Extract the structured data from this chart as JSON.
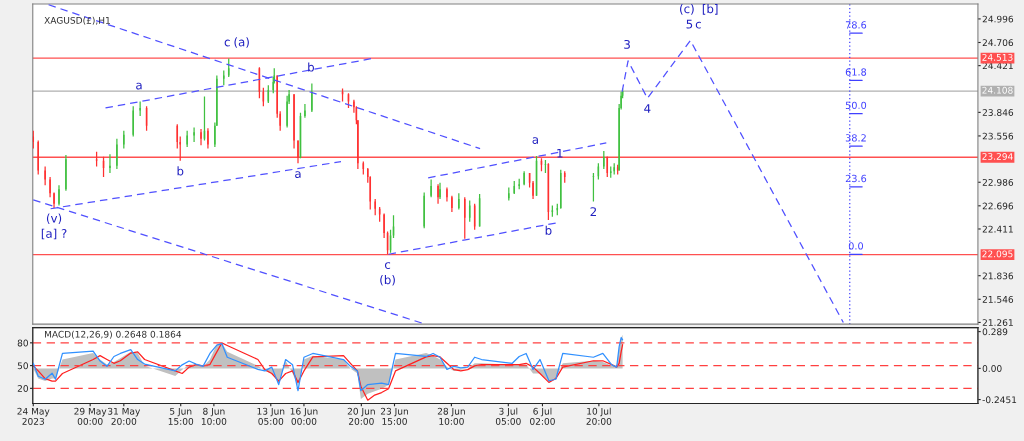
{
  "chart_data": [
    {
      "type": "candlestick",
      "title": "XAGUSD(£),H1",
      "x": [
        "2023-05-24T05:00",
        "2023-05-24T15:00",
        "2023-05-25T05:00",
        "2023-05-25T15:00",
        "2023-05-25T23:00",
        "2023-05-26T09:00",
        "2023-05-26T23:00",
        "2023-05-29T13:00",
        "2023-05-30T03:00",
        "2023-05-30T16:00",
        "2023-05-31T06:00",
        "2023-05-31T20:00",
        "2023-06-01T15:00",
        "2023-06-02T05:00",
        "2023-06-02T18:00",
        "2023-06-05T08:00",
        "2023-06-05T14:00",
        "2023-06-06T04:00",
        "2023-06-06T18:00",
        "2023-06-07T08:00",
        "2023-06-07T15:00",
        "2023-06-07T22:00",
        "2023-06-08T12:00",
        "2023-06-08T16:00",
        "2023-06-09T06:00",
        "2023-06-09T16:00",
        "2023-06-12T06:00",
        "2023-06-12T14:00",
        "2023-06-13T00:00",
        "2023-06-13T10:00",
        "2023-06-13T12:00",
        "2023-06-13T18:00",
        "2023-06-14T00:00",
        "2023-06-14T14:00",
        "2023-06-14T18:00",
        "2023-06-15T04:00",
        "2023-06-15T12:00",
        "2023-06-15T17:00",
        "2023-06-16T02:00",
        "2023-06-16T16:00",
        "2023-06-19T06:00",
        "2023-06-19T18:00",
        "2023-06-20T05:00",
        "2023-06-20T10:00",
        "2023-06-20T13:00",
        "2023-06-21T00:00",
        "2023-06-21T09:00",
        "2023-06-21T14:00",
        "2023-06-22T00:00",
        "2023-06-22T09:00",
        "2023-06-22T18:00",
        "2023-06-23T01:00",
        "2023-06-23T07:00",
        "2023-06-23T13:00",
        "2023-06-26T03:00",
        "2023-06-26T17:00",
        "2023-06-27T07:00",
        "2023-06-27T11:00",
        "2023-06-28T01:00",
        "2023-06-28T11:00",
        "2023-06-29T01:00",
        "2023-06-29T13:00",
        "2023-06-29T23:00",
        "2023-06-30T09:00",
        "2023-06-30T19:00",
        "2023-07-03T06:00",
        "2023-07-03T17:00",
        "2023-07-04T03:00",
        "2023-07-04T13:00",
        "2023-07-05T00:00",
        "2023-07-05T07:00",
        "2023-07-05T14:00",
        "2023-07-06T00:00",
        "2023-07-06T08:00",
        "2023-07-06T14:00",
        "2023-07-06T22:00",
        "2023-07-07T08:00",
        "2023-07-07T15:00",
        "2023-07-07T23:00",
        "2023-07-10T09:00",
        "2023-07-10T19:00",
        "2023-07-11T06:00",
        "2023-07-11T13:00",
        "2023-07-11T20:00",
        "2023-07-12T03:00",
        "2023-07-12T10:00",
        "2023-07-12T13:00",
        "2023-07-12T17:00",
        "2023-07-12T20:00"
      ],
      "ohlc": [
        [
          23.55,
          23.62,
          23.4,
          23.48
        ],
        [
          23.48,
          23.5,
          23.08,
          23.13
        ],
        [
          23.13,
          23.18,
          22.95,
          23.02
        ],
        [
          23.02,
          23.05,
          22.8,
          22.85
        ],
        [
          22.85,
          22.86,
          22.67,
          22.72
        ],
        [
          22.72,
          22.95,
          22.7,
          22.9
        ],
        [
          22.9,
          23.32,
          22.88,
          23.27
        ],
        [
          23.27,
          23.36,
          23.18,
          23.25
        ],
        [
          23.25,
          23.3,
          23.05,
          23.16
        ],
        [
          23.16,
          23.33,
          23.1,
          23.19
        ],
        [
          23.19,
          23.52,
          23.15,
          23.45
        ],
        [
          23.45,
          23.62,
          23.4,
          23.57
        ],
        [
          23.57,
          23.92,
          23.55,
          23.87
        ],
        [
          23.87,
          23.98,
          23.8,
          23.9
        ],
        [
          23.9,
          23.92,
          23.62,
          23.68
        ],
        [
          23.68,
          23.7,
          23.4,
          23.48
        ],
        [
          23.48,
          23.55,
          23.25,
          23.45
        ],
        [
          23.45,
          23.62,
          23.42,
          23.56
        ],
        [
          23.56,
          23.66,
          23.48,
          23.6
        ],
        [
          23.6,
          23.64,
          23.44,
          23.52
        ],
        [
          23.52,
          24.04,
          23.5,
          23.62
        ],
        [
          23.62,
          23.65,
          23.4,
          23.45
        ],
        [
          23.45,
          23.72,
          23.42,
          23.68
        ],
        [
          23.68,
          24.3,
          23.68,
          24.26
        ],
        [
          24.26,
          24.36,
          24.18,
          24.3
        ],
        [
          24.3,
          24.51,
          24.28,
          24.39
        ],
        [
          24.39,
          24.4,
          24.02,
          24.1
        ],
        [
          24.1,
          24.15,
          23.92,
          23.98
        ],
        [
          23.98,
          24.18,
          23.96,
          24.12
        ],
        [
          24.12,
          24.28,
          24.08,
          24.22
        ],
        [
          24.22,
          24.39,
          24.2,
          24.3
        ],
        [
          24.3,
          24.3,
          23.78,
          23.83
        ],
        [
          23.83,
          23.86,
          23.62,
          23.68
        ],
        [
          23.68,
          24.05,
          23.66,
          23.98
        ],
        [
          23.98,
          24.12,
          23.95,
          24.07
        ],
        [
          24.07,
          24.07,
          23.4,
          23.5
        ],
        [
          23.5,
          23.5,
          23.22,
          23.29
        ],
        [
          23.29,
          23.84,
          23.28,
          23.8
        ],
        [
          23.8,
          23.95,
          23.78,
          23.87
        ],
        [
          23.87,
          24.2,
          23.85,
          24.1
        ],
        [
          24.1,
          24.14,
          23.98,
          24.07
        ],
        [
          24.07,
          24.08,
          23.9,
          23.98
        ],
        [
          23.98,
          24.0,
          23.84,
          23.91
        ],
        [
          23.91,
          23.92,
          23.7,
          23.75
        ],
        [
          23.75,
          23.75,
          23.15,
          23.22
        ],
        [
          23.22,
          23.24,
          23.08,
          23.15
        ],
        [
          23.15,
          23.16,
          22.98,
          23.05
        ],
        [
          23.05,
          23.06,
          22.65,
          22.75
        ],
        [
          22.75,
          22.78,
          22.58,
          22.66
        ],
        [
          22.66,
          22.68,
          22.5,
          22.59
        ],
        [
          22.59,
          22.6,
          22.3,
          22.36
        ],
        [
          22.36,
          22.38,
          22.1,
          22.15
        ],
        [
          22.15,
          22.4,
          22.12,
          22.33
        ],
        [
          22.33,
          22.58,
          22.3,
          22.44
        ],
        [
          22.44,
          22.86,
          22.42,
          22.82
        ],
        [
          22.82,
          23.02,
          22.8,
          22.94
        ],
        [
          22.94,
          22.96,
          22.72,
          22.8
        ],
        [
          22.8,
          22.98,
          22.78,
          22.9
        ],
        [
          22.9,
          22.92,
          22.75,
          22.8
        ],
        [
          22.8,
          22.82,
          22.62,
          22.67
        ],
        [
          22.67,
          22.85,
          22.65,
          22.78
        ],
        [
          22.78,
          22.8,
          22.29,
          22.55
        ],
        [
          22.55,
          22.76,
          22.5,
          22.7
        ],
        [
          22.7,
          22.72,
          22.4,
          22.44
        ],
        [
          22.44,
          22.84,
          22.44,
          22.79
        ],
        [
          22.79,
          22.92,
          22.76,
          22.85
        ],
        [
          22.85,
          23.0,
          22.84,
          22.94
        ],
        [
          22.94,
          23.03,
          22.9,
          22.96
        ],
        [
          22.96,
          23.12,
          22.95,
          23.1
        ],
        [
          23.1,
          23.1,
          22.92,
          22.98
        ],
        [
          22.98,
          23.0,
          22.78,
          22.82
        ],
        [
          22.82,
          23.31,
          22.82,
          23.25
        ],
        [
          23.25,
          23.28,
          23.12,
          23.2
        ],
        [
          23.2,
          23.26,
          23.1,
          23.21
        ],
        [
          23.21,
          23.22,
          22.52,
          22.62
        ],
        [
          22.62,
          22.7,
          22.56,
          22.64
        ],
        [
          22.64,
          22.72,
          22.58,
          22.67
        ],
        [
          22.67,
          23.14,
          22.66,
          23.1
        ],
        [
          23.1,
          23.12,
          22.98,
          23.05
        ],
        [
          23.05,
          23.1,
          22.75,
          23.06
        ],
        [
          23.06,
          23.22,
          23.02,
          23.18
        ],
        [
          23.18,
          23.37,
          23.15,
          23.3
        ],
        [
          23.3,
          23.3,
          23.05,
          23.1
        ],
        [
          23.1,
          23.18,
          23.04,
          23.12
        ],
        [
          23.12,
          23.22,
          23.08,
          23.17
        ],
        [
          23.17,
          23.2,
          23.08,
          23.13
        ],
        [
          23.13,
          23.95,
          23.13,
          23.9
        ],
        [
          23.9,
          24.1,
          23.88,
          24.05
        ],
        [
          24.05,
          24.14,
          24.02,
          24.108
        ]
      ],
      "colors": [
        "#ff3030",
        "#ff3030",
        "#ff3030",
        "#ff3030",
        "#ff3030",
        "#40c040",
        "#40c040",
        "#ff3030",
        "#ff3030",
        "#40c040",
        "#40c040",
        "#40c040",
        "#40c040",
        "#40c040",
        "#ff3030",
        "#ff3030",
        "#ff3030",
        "#40c040",
        "#40c040",
        "#ff3030",
        "#40c040",
        "#ff3030",
        "#40c040",
        "#40c040",
        "#40c040",
        "#40c040",
        "#ff3030",
        "#ff3030",
        "#40c040",
        "#40c040",
        "#40c040",
        "#ff3030",
        "#ff3030",
        "#40c040",
        "#40c040",
        "#ff3030",
        "#ff3030",
        "#40c040",
        "#40c040",
        "#40c040",
        "#ff3030",
        "#ff3030",
        "#ff3030",
        "#ff3030",
        "#ff3030",
        "#ff3030",
        "#ff3030",
        "#ff3030",
        "#ff3030",
        "#ff3030",
        "#ff3030",
        "#ff3030",
        "#40c040",
        "#40c040",
        "#40c040",
        "#40c040",
        "#ff3030",
        "#40c040",
        "#ff3030",
        "#ff3030",
        "#40c040",
        "#ff3030",
        "#40c040",
        "#ff3030",
        "#40c040",
        "#40c040",
        "#40c040",
        "#40c040",
        "#40c040",
        "#ff3030",
        "#ff3030",
        "#40c040",
        "#ff3030",
        "#40c040",
        "#ff3030",
        "#40c040",
        "#40c040",
        "#40c040",
        "#ff3030",
        "#40c040",
        "#40c040",
        "#40c040",
        "#ff3030",
        "#40c040",
        "#40c040",
        "#ff3030",
        "#40c040",
        "#40c040",
        "#40c040"
      ],
      "series": [
        {
          "type": "line",
          "line_style": "dashed",
          "color": "#5050ff",
          "x": [
            "2023-05-25T12:00",
            "2023-06-30T20:00"
          ],
          "values": [
            25.17,
            23.4
          ]
        },
        {
          "type": "line",
          "line_style": "dashed",
          "color": "#5050ff",
          "x": [
            "2023-05-24T05:00",
            "2023-06-26T00:00"
          ],
          "values": [
            22.77,
            21.25
          ]
        },
        {
          "type": "line",
          "line_style": "dashed",
          "color": "#5050ff",
          "x": [
            "2023-05-30T07:00",
            "2023-06-21T19:00"
          ],
          "values": [
            23.9,
            24.51
          ]
        },
        {
          "type": "line",
          "line_style": "dashed",
          "color": "#5050ff",
          "x": [
            "2023-05-25T16:00",
            "2023-06-19T03:00"
          ],
          "values": [
            22.66,
            23.24
          ]
        },
        {
          "type": "line",
          "line_style": "dashed",
          "color": "#5050ff",
          "x": [
            "2023-06-26T11:00",
            "2023-07-11T11:00"
          ],
          "values": [
            23.04,
            23.47
          ]
        },
        {
          "type": "line",
          "line_style": "dashed",
          "color": "#5050ff",
          "x": [
            "2023-06-23T03:00",
            "2023-07-07T10:00"
          ],
          "values": [
            22.1,
            22.49
          ]
        },
        {
          "type": "line",
          "line_style": "dashed",
          "color": "#5050ff",
          "x": [
            "2023-07-12T19:00",
            "2023-07-13T07:00",
            "2023-07-14T22:00",
            "2023-07-18T13:00",
            "2023-07-31T10:00"
          ],
          "values": [
            24.1,
            24.48,
            24.02,
            24.73,
            21.26
          ]
        },
        {
          "type": "line",
          "name": "78.6",
          "color": "#4040ff",
          "x": [
            "2023-07-31T23:00",
            "2023-08-02T00:00"
          ],
          "values": [
            24.82,
            24.82
          ]
        },
        {
          "type": "line",
          "name": "61.8",
          "color": "#4040ff",
          "x": [
            "2023-07-31T23:00",
            "2023-08-02T00:00"
          ],
          "values": [
            24.24,
            24.24
          ]
        },
        {
          "type": "line",
          "name": "50.0",
          "color": "#4040ff",
          "x": [
            "2023-07-31T23:00",
            "2023-08-02T00:00"
          ],
          "values": [
            23.83,
            23.83
          ]
        },
        {
          "type": "line",
          "name": "38.2",
          "color": "#4040ff",
          "x": [
            "2023-07-31T23:00",
            "2023-08-02T00:00"
          ],
          "values": [
            23.43,
            23.43
          ]
        },
        {
          "type": "line",
          "name": "23.6",
          "color": "#4040ff",
          "x": [
            "2023-07-31T23:00",
            "2023-08-02T00:00"
          ],
          "values": [
            22.93,
            22.93
          ]
        },
        {
          "type": "line",
          "name": "0.0",
          "color": "#4040ff",
          "x": [
            "2023-07-31T23:00",
            "2023-08-02T00:00"
          ],
          "values": [
            22.1,
            22.1
          ]
        }
      ],
      "xlim": [
        "2023-05-24T04:00",
        "2023-08-11T18:00"
      ],
      "ylim": [
        21.24,
        25.18
      ],
      "yticks": [
        24.996,
        24.706,
        24.421,
        23.846,
        23.556,
        22.986,
        22.696,
        22.411,
        21.836,
        21.546,
        21.261
      ],
      "tick_labels": "y",
      "ref_lines": [
        {
          "axis": "y",
          "value": 24.513,
          "label": "24.513",
          "color": "#ff5050"
        },
        {
          "axis": "y",
          "value": 24.108,
          "label": "24.108",
          "color": "#b0b0b0"
        },
        {
          "axis": "y",
          "value": 23.294,
          "label": "23.294",
          "color": "#ff5050"
        },
        {
          "axis": "y",
          "value": 22.095,
          "label": "22.095",
          "color": "#ff5050"
        },
        {
          "axis": "x",
          "value": "2023-07-31T23:00",
          "color": "#4040ff",
          "line_style": "dotted"
        }
      ],
      "annotations": [
        {
          "text": "c",
          "x": "2023-06-09T16:00",
          "y": 24.51
        },
        {
          "text": "(a)",
          "x": "2023-06-09T16:00",
          "y": 24.51
        },
        {
          "text": "a",
          "x": "2023-06-02T05:00",
          "y": 23.98
        },
        {
          "text": "b",
          "x": "2023-06-05T14:00",
          "y": 23.25
        },
        {
          "text": "(v)",
          "x": "2023-05-25T23:00",
          "y": 22.67
        },
        {
          "text": "[a] ?",
          "x": "2023-05-25T23:00",
          "y": 22.67
        },
        {
          "text": "a",
          "x": "2023-06-15T12:00",
          "y": 23.22
        },
        {
          "text": "b",
          "x": "2023-06-16T16:00",
          "y": 24.2
        },
        {
          "text": "c",
          "x": "2023-06-23T01:00",
          "y": 22.1
        },
        {
          "text": "(b)",
          "x": "2023-06-23T01:00",
          "y": 22.1
        },
        {
          "text": "a",
          "x": "2023-07-05T14:00",
          "y": 23.31
        },
        {
          "text": "1",
          "x": "2023-07-07T15:00",
          "y": 23.14
        },
        {
          "text": "b",
          "x": "2023-07-06T14:00",
          "y": 22.52
        },
        {
          "text": "2",
          "x": "2023-07-10T09:00",
          "y": 22.75
        },
        {
          "text": "3",
          "x": "2023-07-13T07:00",
          "y": 24.48
        },
        {
          "text": "4",
          "x": "2023-07-14T22:00",
          "y": 24.02
        },
        {
          "text": "5",
          "x": "2023-07-18T13:00",
          "y": 24.73
        },
        {
          "text": "c",
          "x": "2023-07-18T13:00",
          "y": 24.73
        },
        {
          "text": "(c)",
          "x": "2023-07-18T13:00",
          "y": 24.73
        },
        {
          "text": "[b]",
          "x": "2023-07-18T13:00",
          "y": 24.73
        }
      ]
    },
    {
      "type": "line",
      "title": "MACD(12,26,9) 0.2648 0.1864",
      "x": [
        "2023-05-24T05:00",
        "2023-05-24T15:00",
        "2023-05-25T05:00",
        "2023-05-25T19:00",
        "2023-05-26T02:00",
        "2023-05-26T16:00",
        "2023-05-29T06:00",
        "2023-05-29T20:00",
        "2023-05-30T10:00",
        "2023-05-31T00:00",
        "2023-05-31T13:00",
        "2023-06-01T10:00",
        "2023-06-02T00:00",
        "2023-06-02T14:00",
        "2023-06-05T04:00",
        "2023-06-05T18:00",
        "2023-06-06T08:00",
        "2023-06-06T22:00",
        "2023-06-07T12:00",
        "2023-06-08T02:00",
        "2023-06-08T16:00",
        "2023-06-09T02:00",
        "2023-06-09T13:00",
        "2023-06-12T03:00",
        "2023-06-12T17:00",
        "2023-06-13T07:00",
        "2023-06-13T21:00",
        "2023-06-14T11:00",
        "2023-06-15T01:00",
        "2023-06-15T12:00",
        "2023-06-16T00:00",
        "2023-06-16T18:00",
        "2023-06-19T08:00",
        "2023-06-19T22:00",
        "2023-06-20T12:00",
        "2023-06-20T19:00",
        "2023-06-21T09:00",
        "2023-06-21T23:00",
        "2023-06-22T13:00",
        "2023-06-23T03:00",
        "2023-06-23T17:00",
        "2023-06-26T07:00",
        "2023-06-26T21:00",
        "2023-06-27T11:00",
        "2023-06-28T01:00",
        "2023-06-28T15:00",
        "2023-06-29T05:00",
        "2023-06-29T19:00",
        "2023-06-30T09:00",
        "2023-06-30T23:00",
        "2023-07-03T13:00",
        "2023-07-04T03:00",
        "2023-07-04T17:00",
        "2023-07-05T07:00",
        "2023-07-05T21:00",
        "2023-07-06T15:00",
        "2023-07-07T05:00",
        "2023-07-07T19:00",
        "2023-07-10T09:00",
        "2023-07-11T04:00",
        "2023-07-11T22:00",
        "2023-07-12T08:00",
        "2023-07-12T13:00",
        "2023-07-12T17:00",
        "2023-07-12T20:00"
      ],
      "series": [
        {
          "type": "area",
          "color": "#c0c0c0",
          "values": [
            0.0,
            -0.08,
            -0.1,
            -0.08,
            -0.08,
            0.07,
            0.12,
            0.07,
            0.03,
            0.05,
            0.08,
            0.13,
            0.12,
            0.02,
            -0.06,
            -0.01,
            0.03,
            0.03,
            0.01,
            0.07,
            0.19,
            0.2,
            0.13,
            0.02,
            -0.02,
            -0.04,
            -0.11,
            0.06,
            -0.04,
            -0.14,
            0.07,
            0.1,
            0.07,
            0.0,
            -0.04,
            -0.24,
            -0.2,
            -0.18,
            -0.16,
            -0.13,
            0.07,
            0.12,
            0.1,
            0.07,
            0.01,
            -0.02,
            -0.01,
            0.0,
            0.04,
            0.04,
            0.03,
            0.03,
            0.03,
            -0.04,
            -0.04,
            -0.1,
            -0.08,
            0.04,
            0.06,
            0.05,
            0.02,
            0.02,
            0.16,
            0.24,
            0.2648
          ]
        },
        {
          "type": "line",
          "color": "#ff2020",
          "values": [
            0.02,
            -0.02,
            -0.08,
            -0.1,
            -0.1,
            -0.04,
            0.07,
            0.1,
            0.07,
            0.04,
            0.06,
            0.12,
            0.13,
            0.07,
            -0.02,
            -0.04,
            0.01,
            0.03,
            0.02,
            0.03,
            0.13,
            0.2,
            0.18,
            0.07,
            -0.01,
            -0.04,
            -0.1,
            -0.04,
            -0.02,
            -0.11,
            -0.02,
            0.09,
            0.1,
            0.04,
            -0.02,
            -0.14,
            -0.25,
            -0.21,
            -0.19,
            -0.16,
            -0.02,
            0.09,
            0.1,
            0.09,
            0.04,
            -0.01,
            -0.02,
            -0.01,
            0.02,
            0.03,
            0.03,
            0.03,
            0.04,
            0.01,
            -0.04,
            -0.11,
            -0.08,
            0.01,
            0.06,
            0.06,
            0.03,
            0.01,
            0.04,
            0.13,
            0.1864
          ]
        },
        {
          "type": "line",
          "axis": "y2",
          "color": "#3090ff",
          "values": [
            53,
            36,
            32,
            40,
            32,
            66,
            69,
            56,
            49,
            62,
            66,
            71,
            58,
            52,
            43,
            51,
            56,
            52,
            49,
            66,
            77,
            79,
            61,
            45,
            43,
            48,
            25,
            58,
            51,
            17,
            61,
            66,
            58,
            49,
            43,
            17,
            25,
            26,
            27,
            25,
            66,
            62,
            66,
            61,
            45,
            49,
            47,
            48,
            61,
            58,
            53,
            62,
            66,
            45,
            58,
            30,
            32,
            66,
            61,
            66,
            51,
            48,
            75,
            87,
            84
          ]
        }
      ],
      "xlim": [
        "2023-05-24T04:00",
        "2023-08-11T18:00"
      ],
      "ylim": [
        -0.276,
        0.32
      ],
      "y2lim": [
        0,
        100
      ],
      "yticks": [
        0.289,
        {
          "value": 0,
          "label": "0.00"
        },
        -0.2451
      ],
      "y2ticks": [
        80,
        50,
        20
      ],
      "xticks": [
        {
          "value": "2023-05-24T05:00",
          "label": "24 May 2023"
        },
        {
          "value": "2023-05-29T00:00",
          "label": "29 May 00:00"
        },
        {
          "value": "2023-05-31T20:00",
          "label": "31 May 20:00"
        },
        {
          "value": "2023-06-05T15:00",
          "label": "5 Jun 15:00"
        },
        {
          "value": "2023-06-08T10:00",
          "label": "8 Jun 10:00"
        },
        {
          "value": "2023-06-13T05:00",
          "label": "13 Jun 05:00"
        },
        {
          "value": "2023-06-16T00:00",
          "label": "16 Jun 00:00"
        },
        {
          "value": "2023-06-20T20:00",
          "label": "20 Jun 20:00"
        },
        {
          "value": "2023-06-23T15:00",
          "label": "23 Jun 15:00"
        },
        {
          "value": "2023-06-28T10:00",
          "label": "28 Jun 10:00"
        },
        {
          "value": "2023-07-03T05:00",
          "label": "3 Jul 05:00"
        },
        {
          "value": "2023-07-06T02:00",
          "label": "6 Jul 02:00"
        },
        {
          "value": "2023-07-10T20:00",
          "label": "10 Jul 20:00"
        }
      ],
      "ref_lines": [
        {
          "axis": "y2",
          "value": 80,
          "color": "#ff4040",
          "line_style": "dashed"
        },
        {
          "axis": "y2",
          "value": 50,
          "color": "#ff4040",
          "line_style": "dashed"
        },
        {
          "axis": "y2",
          "value": 20,
          "color": "#ff4040",
          "line_style": "dashed"
        }
      ]
    }
  ]
}
